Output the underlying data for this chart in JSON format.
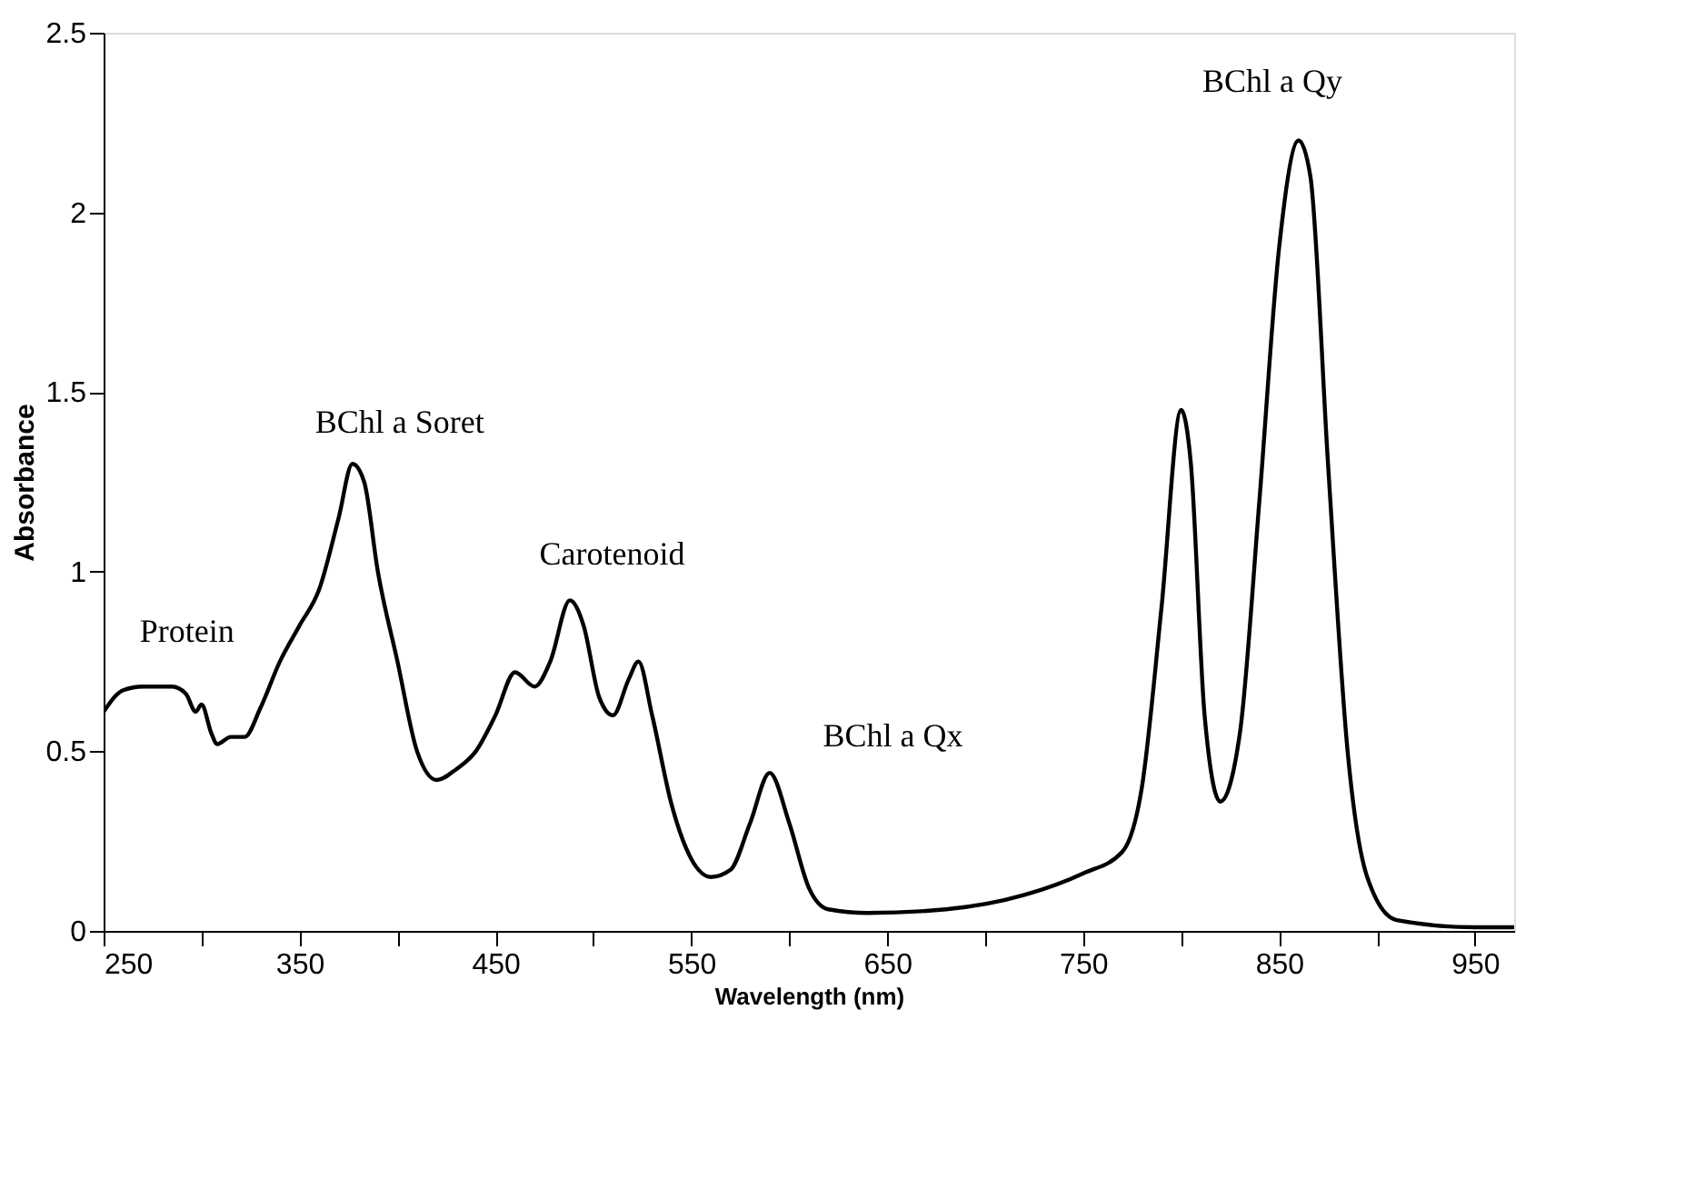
{
  "chart_data": {
    "type": "line",
    "xlabel": "Wavelength (nm)",
    "ylabel": "Absorbance",
    "xlim": [
      250,
      970
    ],
    "ylim": [
      0,
      2.5
    ],
    "xticks": [
      250,
      {
        "value": 300,
        "label": null
      },
      350,
      {
        "value": 400,
        "label": null
      },
      450,
      {
        "value": 500,
        "label": null
      },
      550,
      {
        "value": 600,
        "label": null
      },
      650,
      {
        "value": 700,
        "label": null
      },
      750,
      {
        "value": 800,
        "label": null
      },
      850,
      {
        "value": 900,
        "label": null
      },
      950
    ],
    "yticks": [
      0,
      0.5,
      1,
      1.5,
      2,
      2.5
    ],
    "grid": false,
    "marker": "none",
    "line_style": "solid",
    "series": [
      {
        "color": "#000000",
        "x": [
          250,
          260,
          270,
          285,
          292,
          297,
          300,
          305,
          308,
          315,
          322,
          330,
          340,
          350,
          360,
          370,
          377,
          383,
          390,
          400,
          410,
          420,
          430,
          440,
          450,
          460,
          470,
          478,
          488,
          495,
          503,
          510,
          518,
          523,
          530,
          540,
          550,
          560,
          570,
          580,
          590,
          600,
          610,
          620,
          640,
          680,
          720,
          750,
          770,
          780,
          790,
          800,
          805,
          812,
          820,
          830,
          840,
          850,
          860,
          866,
          875,
          885,
          895,
          910,
          950,
          970
        ],
        "values": [
          0.61,
          0.67,
          0.68,
          0.68,
          0.66,
          0.61,
          0.63,
          0.55,
          0.52,
          0.54,
          0.54,
          0.62,
          0.75,
          0.85,
          0.95,
          1.15,
          1.3,
          1.25,
          1.0,
          0.75,
          0.5,
          0.42,
          0.45,
          0.5,
          0.6,
          0.72,
          0.68,
          0.75,
          0.92,
          0.85,
          0.65,
          0.6,
          0.7,
          0.75,
          0.6,
          0.35,
          0.2,
          0.15,
          0.17,
          0.3,
          0.44,
          0.3,
          0.12,
          0.06,
          0.05,
          0.06,
          0.1,
          0.16,
          0.22,
          0.4,
          0.9,
          1.45,
          1.3,
          0.6,
          0.36,
          0.55,
          1.2,
          1.9,
          2.2,
          2.1,
          1.3,
          0.5,
          0.15,
          0.03,
          0.01,
          0.01
        ]
      }
    ],
    "annotations": [
      "Protein",
      "BChl a Soret",
      "Carotenoid",
      "BChl a Qx",
      "BChl a Qy"
    ]
  }
}
